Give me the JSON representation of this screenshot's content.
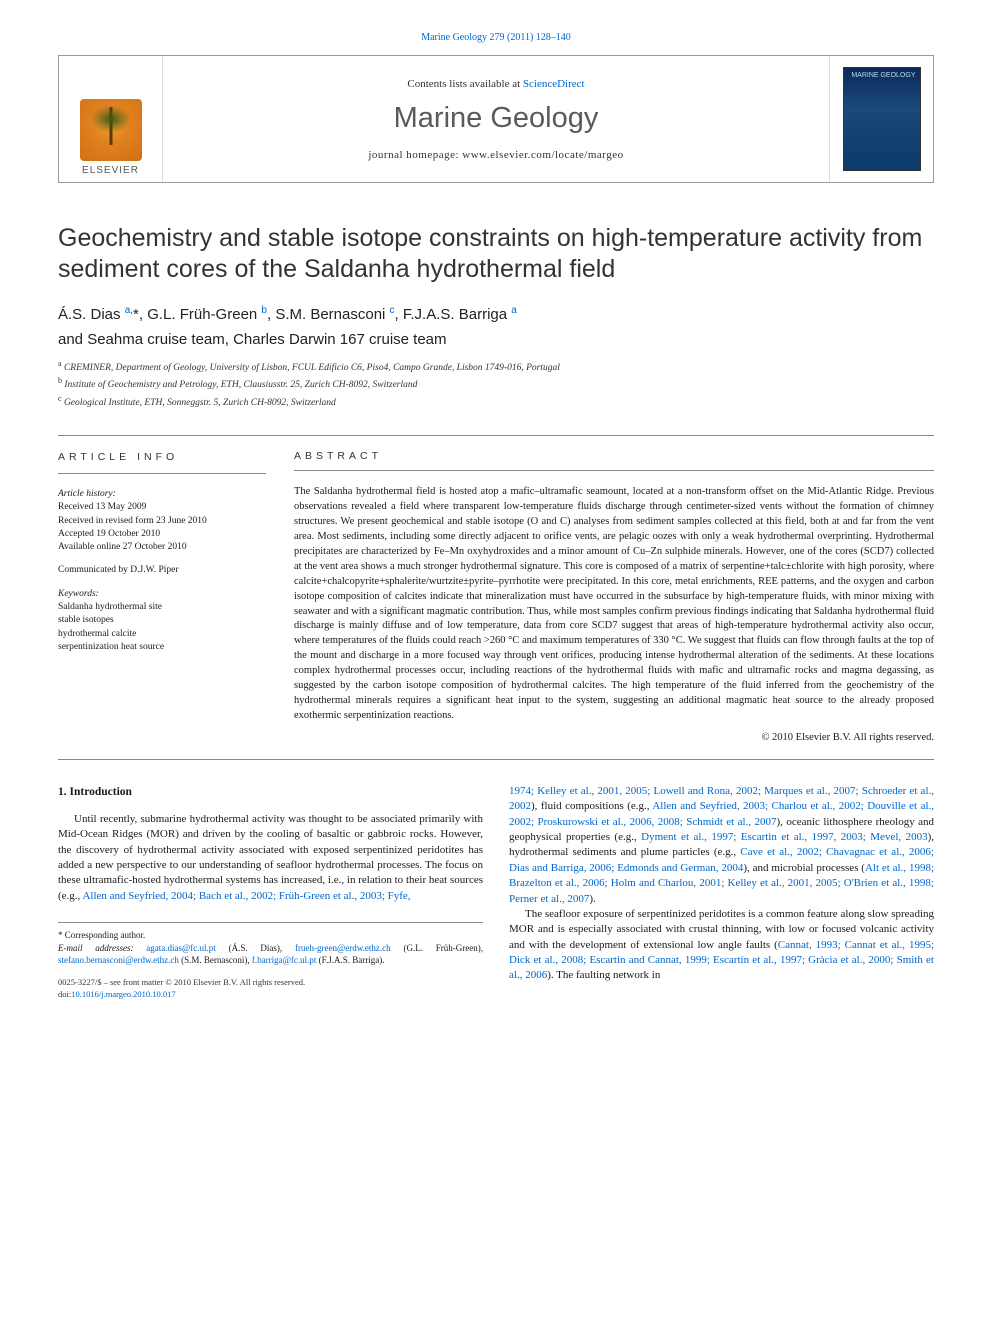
{
  "top_citation": "Marine Geology 279 (2011) 128–140",
  "header": {
    "contents_text": "Contents lists available at ",
    "contents_link": "ScienceDirect",
    "journal": "Marine Geology",
    "homepage": "journal homepage: www.elsevier.com/locate/margeo",
    "cover_label": "MARINE\nGEOLOGY",
    "publisher": "ELSEVIER"
  },
  "title": "Geochemistry and stable isotope constraints on high-temperature activity from sediment cores of the Saldanha hydrothermal field",
  "authors_html": "Á.S. Dias <sup>a,</sup><span class='star'>*</span>, G.L. Früh-Green <sup>b</sup>, S.M. Bernasconi <sup>c</sup>, F.J.A.S. Barriga <sup>a</sup>",
  "teams": "and Seahma cruise team, Charles Darwin 167 cruise team",
  "affiliations": [
    "CREMINER, Department of Geology, University of Lisbon, FCUL Edificio C6, Piso4, Campo Grande, Lisbon 1749-016, Portugal",
    "Institute of Geochemistry and Petrology, ETH, Clausiusstr. 25, Zurich CH-8092, Switzerland",
    "Geological Institute, ETH, Sonneggstr. 5, Zurich CH-8092, Switzerland"
  ],
  "affil_markers": [
    "a",
    "b",
    "c"
  ],
  "article_info": {
    "heading": "ARTICLE INFO",
    "history_label": "Article history:",
    "history": [
      "Received 13 May 2009",
      "Received in revised form 23 June 2010",
      "Accepted 19 October 2010",
      "Available online 27 October 2010"
    ],
    "communicated": "Communicated by D.J.W. Piper",
    "keywords_label": "Keywords:",
    "keywords": [
      "Saldanha hydrothermal site",
      "stable isotopes",
      "hydrothermal calcite",
      "serpentinization heat source"
    ]
  },
  "abstract": {
    "heading": "ABSTRACT",
    "text": "The Saldanha hydrothermal field is hosted atop a mafic–ultramafic seamount, located at a non-transform offset on the Mid-Atlantic Ridge. Previous observations revealed a field where transparent low-temperature fluids discharge through centimeter-sized vents without the formation of chimney structures. We present geochemical and stable isotope (O and C) analyses from sediment samples collected at this field, both at and far from the vent area. Most sediments, including some directly adjacent to orifice vents, are pelagic oozes with only a weak hydrothermal overprinting. Hydrothermal precipitates are characterized by Fe–Mn oxyhydroxides and a minor amount of Cu–Zn sulphide minerals. However, one of the cores (SCD7) collected at the vent area shows a much stronger hydrothermal signature. This core is composed of a matrix of serpentine+talc±chlorite with high porosity, where calcite+chalcopyrite+sphalerite/wurtzite±pyrite–pyrrhotite were precipitated. In this core, metal enrichments, REE patterns, and the oxygen and carbon isotope composition of calcites indicate that mineralization must have occurred in the subsurface by high-temperature fluids, with minor mixing with seawater and with a significant magmatic contribution. Thus, while most samples confirm previous findings indicating that Saldanha hydrothermal fluid discharge is mainly diffuse and of low temperature, data from core SCD7 suggest that areas of high-temperature hydrothermal activity also occur, where temperatures of the fluids could reach >260 °C and maximum temperatures of 330 °C. We suggest that fluids can flow through faults at the top of the mount and discharge in a more focused way through vent orifices, producing intense hydrothermal alteration of the sediments. At these locations complex hydrothermal processes occur, including reactions of the hydrothermal fluids with mafic and ultramafic rocks and magma degassing, as suggested by the carbon isotope composition of hydrothermal calcites. The high temperature of the fluid inferred from the geochemistry of the hydrothermal minerals requires a significant heat input to the system, suggesting an additional magmatic heat source to the already proposed exothermic serpentinization reactions.",
    "copyright": "© 2010 Elsevier B.V. All rights reserved."
  },
  "body": {
    "section_heading": "1. Introduction",
    "left_para": "Until recently, submarine hydrothermal activity was thought to be associated primarily with Mid-Ocean Ridges (MOR) and driven by the cooling of basaltic or gabbroic rocks. However, the discovery of hydrothermal activity associated with exposed serpentinized peridotites has added a new perspective to our understanding of seafloor hydrothermal processes. The focus on these ultramafic-hosted hydrothermal systems has increased, i.e., in relation to their heat sources (e.g., ",
    "left_refs": "Allen and Seyfried, 2004; Bach et al., 2002; Früh-Green et al., 2003; Fyfe,",
    "right_refs_1": "1974; Kelley et al., 2001, 2005; Lowell and Rona, 2002; Marques et al., 2007; Schroeder et al., 2002",
    "right_txt_1": "), fluid compositions (e.g., ",
    "right_refs_2": "Allen and Seyfried, 2003; Charlou et al., 2002; Douville et al., 2002; Proskurowski et al., 2006, 2008; Schmidt et al., 2007",
    "right_txt_2": "), oceanic lithosphere rheology and geophysical properties (e.g., ",
    "right_refs_3": "Dyment et al., 1997; Escartin et al., 1997, 2003; Mevel, 2003",
    "right_txt_3": "), hydrothermal sediments and plume particles (e.g., ",
    "right_refs_4": "Cave et al., 2002; Chavagnac et al., 2006; Dias and Barriga, 2006; Edmonds and German, 2004",
    "right_txt_4": "), and microbial processes (",
    "right_refs_5": "Alt et al., 1998; Brazelton et al., 2006; Holm and Charlou, 2001; Kelley et al., 2001, 2005; O'Brien et al., 1998; Perner et al., 2007",
    "right_txt_5": ").",
    "right_para2_a": "The seafloor exposure of serpentinized peridotites is a common feature along slow spreading MOR and is especially associated with crustal thinning, with low or focused volcanic activity and with the development of extensional low angle faults (",
    "right_refs_6": "Cannat, 1993; Cannat et al., 1995; Dick et al., 2008; Escartin and Cannat, 1999; Escartín et al., 1997; Gràcia et al., 2000; Smith et al., 2006",
    "right_para2_b": "). The faulting network in"
  },
  "footnotes": {
    "corr": "* Corresponding author.",
    "emails_label": "E-mail addresses:",
    "emails": [
      {
        "addr": "agata.dias@fc.ul.pt",
        "who": "(Á.S. Dias)"
      },
      {
        "addr": "frueh-green@erdw.ethz.ch",
        "who": "(G.L. Früh-Green)"
      },
      {
        "addr": "stefano.bernasconi@erdw.ethz.ch",
        "who": "(S.M. Bernasconi)"
      },
      {
        "addr": "f.barriga@fc.ul.pt",
        "who": "(F.J.A.S. Barriga)"
      }
    ]
  },
  "footer": {
    "left": "0025-3227/$ – see front matter © 2010 Elsevier B.V. All rights reserved.",
    "doi": "doi:10.1016/j.margeo.2010.10.017"
  },
  "colors": {
    "link": "#0066cc",
    "text": "#1a1a1a",
    "rule": "#888888"
  }
}
